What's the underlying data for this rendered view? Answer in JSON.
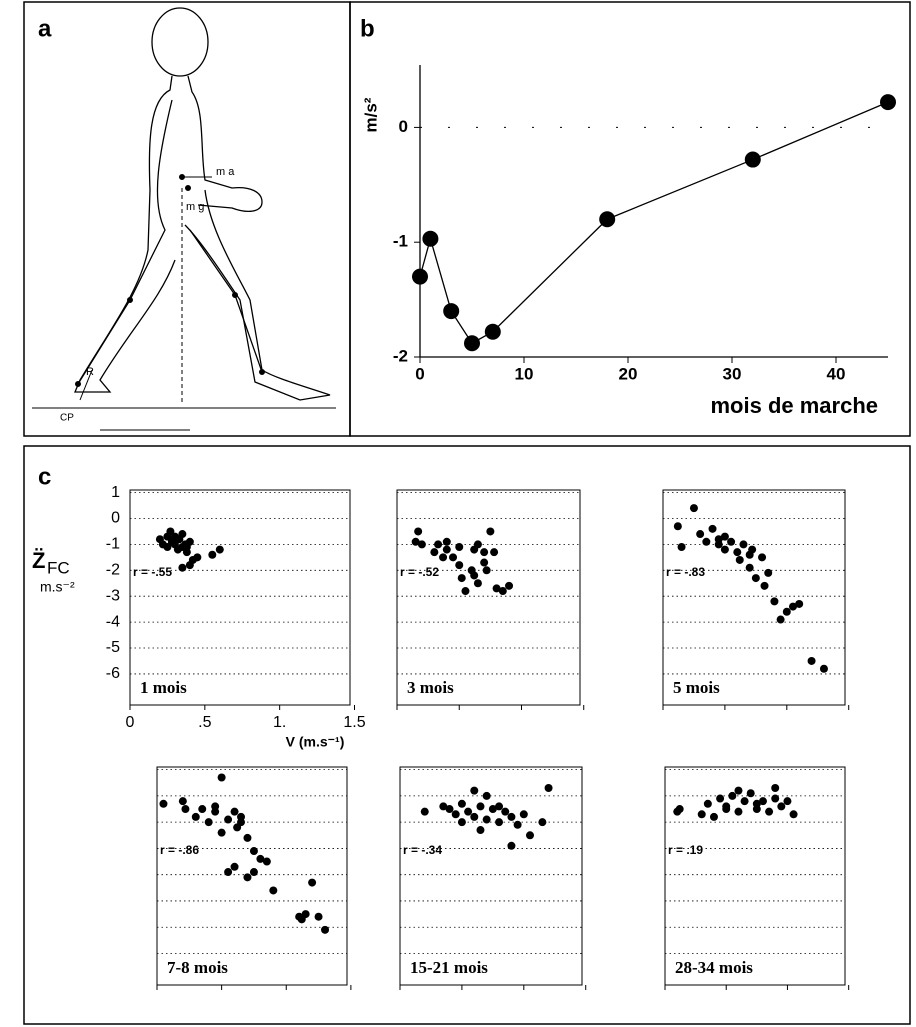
{
  "diagram": {
    "label": "a",
    "labels": [
      "m a",
      "m g",
      "R",
      "CP"
    ]
  },
  "panel_c_label": "c",
  "chart_data": [
    {
      "type": "line",
      "title": "b",
      "ylabel": "m/s²",
      "xlabel": "mois de marche",
      "x": [
        0,
        1,
        3,
        5,
        7,
        18,
        32,
        45
      ],
      "values": [
        -1.3,
        -0.97,
        -1.6,
        -1.88,
        -1.78,
        -0.8,
        -0.28,
        0.22
      ],
      "color": "#000000",
      "xlim": [
        0,
        45
      ],
      "ylim": [
        -2,
        0.5
      ],
      "xticks": [
        0,
        10,
        20,
        30,
        40
      ],
      "yticks": [
        -2,
        -1,
        0
      ],
      "zero_line": true
    },
    {
      "type": "scatter",
      "ylabel_symbol": "Z̈",
      "ylabel_subscript": "FC",
      "ylabel_unit": "m.s⁻²",
      "xlabel": "V (m.s⁻¹)",
      "annotation": "r = -.55",
      "period": "1 mois",
      "tick_labels": true,
      "x": [
        0.2,
        0.22,
        0.25,
        0.25,
        0.27,
        0.28,
        0.3,
        0.3,
        0.32,
        0.33,
        0.35,
        0.35,
        0.37,
        0.38,
        0.4,
        0.4,
        0.42,
        0.45,
        0.55,
        0.6,
        0.35,
        0.38
      ],
      "values": [
        -0.8,
        -1,
        -0.7,
        -1.1,
        -0.5,
        -0.9,
        -1,
        -0.7,
        -1.2,
        -0.8,
        -1.1,
        -0.6,
        -1,
        -1.3,
        -0.9,
        -1.8,
        -1.6,
        -1.5,
        -1.4,
        -1.2,
        -1.9,
        -1.1
      ],
      "color": "#000000",
      "xlim": [
        0,
        1.47
      ],
      "ylim": [
        -7.2,
        1.1
      ],
      "xticks": [
        0,
        {
          "value": 0.5,
          "label": ".5"
        },
        {
          "value": 1,
          "label": "1."
        },
        1.5
      ],
      "yticks": [
        1,
        0,
        -1,
        -2,
        -3,
        -4,
        -5,
        -6
      ],
      "grid": true
    },
    {
      "type": "scatter",
      "annotation": "r = -.52",
      "period": "3 mois",
      "tick_labels": false,
      "x": [
        0.15,
        0.17,
        0.2,
        0.3,
        0.33,
        0.37,
        0.4,
        0.4,
        0.45,
        0.5,
        0.52,
        0.55,
        0.6,
        0.62,
        0.65,
        0.65,
        0.7,
        0.7,
        0.72,
        0.75,
        0.78,
        0.8,
        0.85,
        0.9,
        0.62,
        0.5
      ],
      "values": [
        -0.9,
        -0.5,
        -1,
        -1.3,
        -1,
        -1.5,
        -1.2,
        -0.9,
        -1.5,
        -1.8,
        -2.3,
        -2.8,
        -2,
        -1.2,
        -1,
        -2.5,
        -1.3,
        -1.7,
        -2,
        -0.5,
        -1.3,
        -2.7,
        -2.8,
        -2.6,
        -2.2,
        -1.1
      ],
      "color": "#000000",
      "xlim": [
        0,
        1.47
      ],
      "ylim": [
        -7.2,
        1.1
      ],
      "xticks": [
        0,
        0.5,
        1,
        1.5
      ],
      "yticks": [
        1,
        0,
        -1,
        -2,
        -3,
        -4,
        -5,
        -6
      ],
      "grid": true
    },
    {
      "type": "scatter",
      "annotation": "r = -.83",
      "period": "5 mois",
      "tick_labels": false,
      "x": [
        0.12,
        0.15,
        0.25,
        0.3,
        0.35,
        0.4,
        0.45,
        0.5,
        0.5,
        0.55,
        0.6,
        0.62,
        0.65,
        0.7,
        0.72,
        0.75,
        0.8,
        0.82,
        0.85,
        0.9,
        0.95,
        1,
        1.05,
        1.1,
        1.2,
        1.3,
        0.45,
        0.7
      ],
      "values": [
        -0.3,
        -1.1,
        0.4,
        -0.6,
        -0.9,
        -0.4,
        -1,
        -0.7,
        -1.2,
        -0.9,
        -1.3,
        -1.6,
        -1,
        -1.9,
        -1.2,
        -2.3,
        -1.5,
        -2.6,
        -2.1,
        -3.2,
        -3.9,
        -3.6,
        -3.4,
        -3.3,
        -5.5,
        -5.8,
        -0.8,
        -1.4
      ],
      "color": "#000000",
      "xlim": [
        0,
        1.47
      ],
      "ylim": [
        -7.2,
        1.1
      ],
      "xticks": [
        0,
        0.5,
        1,
        1.5
      ],
      "yticks": [
        1,
        0,
        -1,
        -2,
        -3,
        -4,
        -5,
        -6
      ],
      "grid": true
    },
    {
      "type": "scatter",
      "annotation": "r = -.86",
      "period": "7-8 mois",
      "tick_labels": false,
      "x": [
        0.05,
        0.2,
        0.22,
        0.3,
        0.35,
        0.4,
        0.45,
        0.5,
        0.55,
        0.6,
        0.62,
        0.65,
        0.7,
        0.75,
        0.8,
        0.85,
        0.5,
        0.55,
        0.6,
        0.7,
        0.75,
        0.9,
        1.1,
        1.12,
        1.15,
        1.2,
        1.3,
        1.25,
        0.45,
        0.65
      ],
      "values": [
        -0.3,
        -0.2,
        -0.5,
        -0.8,
        -0.5,
        -1,
        -0.6,
        0.7,
        -0.9,
        -0.6,
        -1.2,
        -0.8,
        -1.6,
        -2.1,
        -2.4,
        -2.5,
        -1.4,
        -2.9,
        -2.7,
        -3.1,
        -2.9,
        -3.6,
        -4.6,
        -4.7,
        -4.5,
        -3.3,
        -5.1,
        -4.6,
        -0.4,
        -1
      ],
      "color": "#000000",
      "xlim": [
        0,
        1.47
      ],
      "ylim": [
        -7.2,
        1.1
      ],
      "xticks": [
        0,
        0.5,
        1,
        1.5
      ],
      "yticks": [
        1,
        0,
        -1,
        -2,
        -3,
        -4,
        -5,
        -6
      ],
      "grid": true
    },
    {
      "type": "scatter",
      "annotation": "r = -.34",
      "period": "15-21 mois",
      "tick_labels": false,
      "x": [
        0.2,
        0.35,
        0.4,
        0.45,
        0.5,
        0.55,
        0.6,
        0.6,
        0.65,
        0.7,
        0.75,
        0.8,
        0.85,
        0.9,
        0.95,
        1,
        1.05,
        0.5,
        0.7,
        0.8,
        1.2,
        1.15,
        0.9,
        0.65
      ],
      "values": [
        -0.6,
        -0.4,
        -0.5,
        -0.7,
        -0.3,
        -0.6,
        -0.8,
        0.2,
        -0.4,
        -0.9,
        -0.5,
        -1,
        -0.6,
        -0.8,
        -1.1,
        -0.7,
        -1.5,
        -1,
        0,
        -0.4,
        0.3,
        -1,
        -1.9,
        -1.3
      ],
      "color": "#000000",
      "xlim": [
        0,
        1.47
      ],
      "ylim": [
        -7.2,
        1.1
      ],
      "xticks": [
        0,
        0.5,
        1,
        1.5
      ],
      "yticks": [
        1,
        0,
        -1,
        -2,
        -3,
        -4,
        -5,
        -6
      ],
      "grid": true
    },
    {
      "type": "scatter",
      "annotation": "r = .19",
      "period": "28-34 mois",
      "tick_labels": false,
      "x": [
        0.1,
        0.12,
        0.3,
        0.35,
        0.4,
        0.45,
        0.5,
        0.55,
        0.6,
        0.65,
        0.7,
        0.75,
        0.8,
        0.85,
        0.9,
        0.95,
        1,
        1.05,
        0.6,
        0.75,
        0.5,
        0.9
      ],
      "values": [
        -0.6,
        -0.5,
        -0.7,
        -0.3,
        -0.8,
        -0.1,
        -0.4,
        0,
        -0.6,
        -0.2,
        0.1,
        -0.5,
        -0.2,
        -0.6,
        0.3,
        -0.4,
        -0.2,
        -0.7,
        0.2,
        -0.3,
        -0.5,
        -0.1
      ],
      "color": "#000000",
      "xlim": [
        0,
        1.47
      ],
      "ylim": [
        -7.2,
        1.1
      ],
      "xticks": [
        0,
        0.5,
        1,
        1.5
      ],
      "yticks": [
        1,
        0,
        -1,
        -2,
        -3,
        -4,
        -5,
        -6
      ],
      "grid": true
    }
  ]
}
